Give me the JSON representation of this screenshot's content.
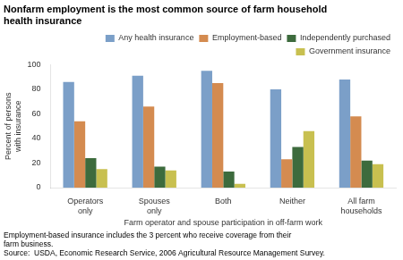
{
  "chart_data": {
    "type": "bar",
    "title": "Nonfarm employment is the most common source of farm household\nhealth insurance",
    "y_label": "Percent of persons\nwith insurance",
    "x_label": "Farm operator and spouse participation in off-farm work",
    "categories": [
      "Operators\nonly",
      "Spouses\nonly",
      "Both",
      "Neither",
      "All farm\nhouseholds"
    ],
    "series": [
      {
        "name": "Any health insurance",
        "color": "#7B9FC8",
        "values": [
          86,
          91,
          95,
          80,
          88
        ]
      },
      {
        "name": "Employment-based",
        "color": "#D48B50",
        "values": [
          54,
          66,
          85,
          23,
          58
        ]
      },
      {
        "name": "Independently purchased",
        "color": "#3D6B3D",
        "values": [
          24,
          17,
          13,
          33,
          22
        ]
      },
      {
        "name": "Government insurance",
        "color": "#C8C050",
        "values": [
          15,
          14,
          3,
          46,
          19
        ]
      }
    ],
    "ylim": [
      0,
      100
    ],
    "yticks": [
      0,
      20,
      40,
      60,
      80,
      100
    ],
    "grid": false,
    "legend": "upper right",
    "annotations": [
      "Employment-based insurance includes the 3 percent who receive coverage from their",
      "farm business.",
      "Source:  USDA, Economic Research Service, 2006 Agricultural Resource Management Survey."
    ]
  }
}
